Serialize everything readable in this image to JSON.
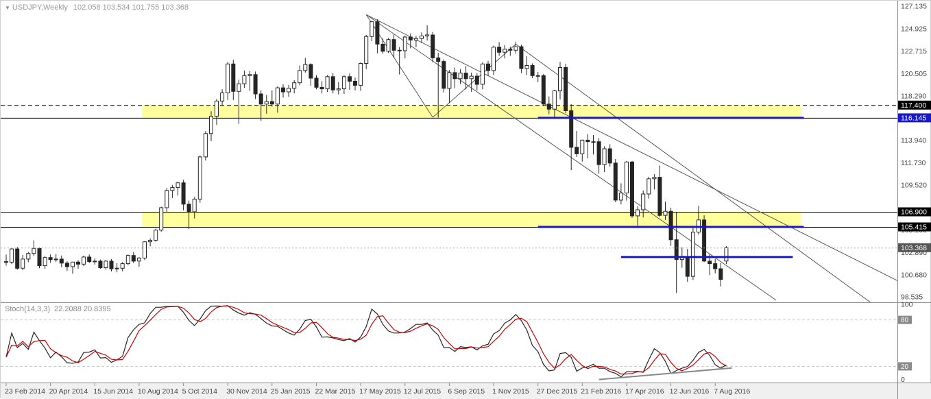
{
  "header": {
    "symbol_period": "USDJPY,Weekly",
    "ohlc": "102.058 103.534 101.755 103.368",
    "dropdown_glyph": "▼"
  },
  "stoch_panel": {
    "label_name": "Stoch(14,3,3)",
    "label_values": "22.2088 20.8395"
  },
  "colors": {
    "band_yellow": "#FFFF9E",
    "blue_line": "#1818C8",
    "line_black": "#000000",
    "trendline_grey": "#555555",
    "stoch_trend_grey": "#888888",
    "candle_up": "#FFFFFF",
    "candle_down": "#252525",
    "candle_stroke": "#252525",
    "stoch_main": "#222222",
    "stoch_signal": "#CC0000",
    "axis_text": "#444444",
    "separator": "#8a8a8a",
    "date_strip_bg": "#f0f0f0",
    "level_line": "#c8c8c8",
    "level_box_bg": "#8a8a8a",
    "current_price_bg": "#555555",
    "black_box_bg": "#000000"
  },
  "chart_data": {
    "type": "candlestick",
    "title": "USDJPY Weekly with Stochastic(14,3,3)",
    "main": {
      "symbol": "USDJPY",
      "timeframe": "Weekly",
      "ohlc_display": {
        "open": "102.058",
        "high": "103.534",
        "low": "101.755",
        "close": "103.368"
      },
      "current_price": 103.368,
      "ylim": [
        98.535,
        127.135
      ],
      "start_date": "23 Feb 2014",
      "price_axis": {
        "ticks": [
          "127.135",
          "124.925",
          "122.715",
          "120.505",
          "118.290",
          "113.940",
          "111.730",
          "109.520",
          "105.100",
          "102.890",
          "100.680",
          "98.535"
        ],
        "boxed": [
          {
            "price": 117.4,
            "text": "117.400",
            "bg": "#000000"
          },
          {
            "price": 116.145,
            "text": "116.145",
            "bg": "#1818C8"
          },
          {
            "price": 106.9,
            "text": "106.900",
            "bg": "#000000"
          },
          {
            "price": 105.415,
            "text": "105.415",
            "bg": "#000000"
          },
          {
            "price": 103.368,
            "text": "103.368",
            "bg": "#555555"
          }
        ]
      },
      "date_labels": [
        {
          "index": 0,
          "text": "23 Feb 2014"
        },
        {
          "index": 8,
          "text": "20 Apr 2014"
        },
        {
          "index": 16,
          "text": "15 Jun 2014"
        },
        {
          "index": 24,
          "text": "10 Aug 2014"
        },
        {
          "index": 32,
          "text": "5 Oct 2014"
        },
        {
          "index": 40,
          "text": "30 Nov 2014"
        },
        {
          "index": 48,
          "text": "25 Jan 2015"
        },
        {
          "index": 56,
          "text": "22 Mar 2015"
        },
        {
          "index": 64,
          "text": "17 May 2015"
        },
        {
          "index": 72,
          "text": "12 Jul 2015"
        },
        {
          "index": 80,
          "text": "6 Sep 2015"
        },
        {
          "index": 88,
          "text": "1 Nov 2015"
        },
        {
          "index": 96,
          "text": "27 Dec 2015"
        },
        {
          "index": 104,
          "text": "21 Feb 2016"
        },
        {
          "index": 112,
          "text": "17 Apr 2016"
        },
        {
          "index": 120,
          "text": "12 Jun 2016"
        },
        {
          "index": 128,
          "text": "7 Aug 2016"
        }
      ],
      "candles": [
        [
          102.0,
          102.7,
          101.6,
          101.95
        ],
        [
          101.95,
          103.35,
          101.75,
          103.25
        ],
        [
          103.25,
          103.45,
          101.2,
          101.35
        ],
        [
          101.35,
          102.65,
          101.15,
          102.25
        ],
        [
          102.25,
          102.95,
          101.95,
          102.8
        ],
        [
          102.8,
          104.1,
          102.55,
          103.3
        ],
        [
          103.3,
          103.4,
          101.35,
          101.6
        ],
        [
          101.6,
          102.55,
          101.3,
          102.4
        ],
        [
          102.4,
          102.7,
          101.9,
          102.2
        ],
        [
          102.2,
          102.75,
          101.95,
          102.25
        ],
        [
          102.25,
          102.6,
          101.45,
          101.85
        ],
        [
          101.85,
          102.05,
          101.1,
          101.5
        ],
        [
          101.5,
          101.98,
          100.8,
          101.95
        ],
        [
          101.95,
          102.15,
          101.3,
          101.75
        ],
        [
          101.75,
          102.6,
          101.55,
          102.45
        ],
        [
          102.45,
          102.7,
          101.85,
          102.0
        ],
        [
          102.0,
          102.3,
          101.7,
          102.05
        ],
        [
          102.05,
          102.2,
          101.3,
          101.4
        ],
        [
          101.4,
          102.15,
          101.2,
          102.05
        ],
        [
          102.05,
          102.25,
          101.05,
          101.3
        ],
        [
          101.3,
          101.85,
          100.95,
          101.35
        ],
        [
          101.35,
          101.95,
          101.05,
          101.8
        ],
        [
          101.8,
          102.7,
          101.65,
          102.6
        ],
        [
          102.6,
          102.95,
          101.85,
          102.05
        ],
        [
          102.05,
          102.45,
          101.5,
          102.35
        ],
        [
          102.35,
          104.0,
          102.15,
          103.95
        ],
        [
          103.95,
          104.3,
          103.5,
          104.1
        ],
        [
          104.1,
          105.25,
          103.95,
          105.1
        ],
        [
          105.1,
          107.4,
          104.95,
          107.3
        ],
        [
          107.3,
          109.25,
          106.85,
          109.0
        ],
        [
          109.0,
          109.55,
          108.25,
          109.3
        ],
        [
          109.3,
          109.85,
          108.5,
          109.75
        ],
        [
          109.75,
          110.05,
          107.05,
          107.65
        ],
        [
          107.65,
          108.0,
          105.2,
          106.9
        ],
        [
          106.9,
          108.35,
          106.25,
          108.15
        ],
        [
          108.15,
          112.45,
          107.8,
          112.3
        ],
        [
          112.3,
          114.85,
          111.95,
          114.6
        ],
        [
          114.6,
          116.8,
          113.85,
          116.3
        ],
        [
          116.3,
          118.0,
          115.45,
          117.8
        ],
        [
          117.8,
          118.95,
          117.35,
          118.6
        ],
        [
          118.6,
          121.65,
          117.9,
          121.45
        ],
        [
          121.45,
          121.85,
          117.9,
          118.75
        ],
        [
          118.75,
          119.9,
          115.56,
          119.5
        ],
        [
          119.5,
          120.8,
          119.1,
          120.3
        ],
        [
          120.3,
          120.75,
          118.8,
          120.4
        ],
        [
          120.4,
          120.7,
          118.0,
          118.5
        ],
        [
          118.5,
          118.85,
          115.85,
          117.5
        ],
        [
          117.5,
          118.4,
          116.55,
          117.75
        ],
        [
          117.75,
          118.85,
          117.25,
          117.5
        ],
        [
          117.5,
          119.25,
          116.65,
          119.1
        ],
        [
          119.1,
          119.45,
          118.15,
          118.7
        ],
        [
          118.7,
          119.4,
          118.2,
          119.05
        ],
        [
          119.05,
          119.85,
          118.55,
          119.6
        ],
        [
          119.6,
          121.3,
          119.35,
          120.8
        ],
        [
          120.8,
          122.05,
          120.6,
          121.4
        ],
        [
          121.4,
          121.5,
          119.3,
          120.05
        ],
        [
          120.05,
          120.35,
          118.95,
          119.15
        ],
        [
          119.15,
          119.75,
          118.55,
          119.0
        ],
        [
          119.0,
          120.35,
          118.7,
          120.2
        ],
        [
          120.2,
          120.55,
          118.55,
          118.9
        ],
        [
          118.9,
          119.65,
          118.45,
          119.0
        ],
        [
          119.0,
          120.35,
          118.5,
          120.2
        ],
        [
          120.2,
          120.5,
          118.9,
          119.75
        ],
        [
          119.75,
          120.1,
          118.85,
          119.35
        ],
        [
          119.35,
          121.6,
          118.8,
          121.5
        ],
        [
          121.5,
          124.3,
          120.95,
          124.15
        ],
        [
          124.15,
          125.7,
          123.7,
          125.6
        ],
        [
          125.6,
          125.86,
          122.5,
          123.4
        ],
        [
          123.4,
          123.95,
          122.45,
          122.7
        ],
        [
          122.7,
          124.0,
          122.55,
          123.85
        ],
        [
          123.85,
          124.35,
          122.1,
          122.8
        ],
        [
          122.8,
          123.1,
          120.41,
          122.75
        ],
        [
          122.75,
          124.25,
          122.0,
          124.1
        ],
        [
          124.1,
          124.45,
          123.0,
          123.8
        ],
        [
          123.8,
          124.2,
          123.1,
          123.95
        ],
        [
          123.95,
          124.55,
          123.5,
          124.2
        ],
        [
          124.2,
          125.25,
          123.75,
          124.3
        ],
        [
          124.3,
          124.6,
          121.6,
          122.05
        ],
        [
          122.05,
          122.55,
          116.15,
          121.7
        ],
        [
          121.7,
          121.9,
          118.65,
          119.05
        ],
        [
          119.05,
          120.85,
          117.6,
          120.6
        ],
        [
          120.6,
          121.1,
          119.05,
          120.0
        ],
        [
          120.0,
          120.95,
          119.45,
          120.55
        ],
        [
          120.55,
          121.25,
          118.95,
          120.0
        ],
        [
          120.0,
          120.6,
          118.7,
          120.25
        ],
        [
          120.25,
          120.55,
          118.85,
          119.45
        ],
        [
          119.45,
          121.6,
          118.95,
          121.45
        ],
        [
          121.45,
          121.75,
          120.25,
          120.8
        ],
        [
          120.8,
          123.25,
          120.35,
          123.1
        ],
        [
          123.1,
          123.6,
          122.25,
          122.6
        ],
        [
          122.6,
          123.3,
          122.0,
          122.9
        ],
        [
          122.9,
          123.15,
          122.25,
          122.8
        ],
        [
          122.8,
          123.65,
          122.45,
          123.15
        ],
        [
          123.15,
          123.35,
          120.55,
          121.0
        ],
        [
          121.0,
          122.2,
          120.35,
          121.3
        ],
        [
          121.3,
          121.5,
          120.05,
          120.3
        ],
        [
          120.3,
          120.65,
          119.65,
          120.3
        ],
        [
          120.3,
          120.45,
          117.3,
          117.5
        ],
        [
          117.5,
          118.25,
          116.5,
          117.0
        ],
        [
          117.0,
          118.9,
          116.05,
          118.8
        ],
        [
          118.8,
          121.65,
          117.95,
          121.1
        ],
        [
          121.1,
          121.45,
          116.6,
          116.85
        ],
        [
          116.85,
          117.5,
          110.99,
          113.25
        ],
        [
          113.25,
          114.85,
          112.3,
          112.6
        ],
        [
          112.6,
          114.0,
          111.85,
          113.95
        ],
        [
          113.95,
          114.55,
          112.15,
          113.8
        ],
        [
          113.8,
          114.45,
          112.55,
          113.8
        ],
        [
          113.8,
          114.15,
          110.65,
          111.55
        ],
        [
          111.55,
          113.35,
          110.8,
          113.1
        ],
        [
          113.1,
          113.55,
          111.35,
          111.7
        ],
        [
          111.7,
          112.1,
          107.85,
          108.05
        ],
        [
          108.05,
          109.7,
          107.63,
          108.75
        ],
        [
          108.75,
          111.9,
          108.0,
          111.8
        ],
        [
          111.8,
          111.9,
          106.3,
          106.5
        ],
        [
          106.5,
          107.45,
          105.55,
          107.1
        ],
        [
          107.1,
          109.0,
          106.35,
          108.65
        ],
        [
          108.65,
          110.35,
          108.2,
          110.15
        ],
        [
          110.15,
          110.6,
          109.1,
          110.3
        ],
        [
          110.3,
          111.45,
          106.4,
          106.55
        ],
        [
          106.55,
          107.9,
          106.1,
          106.95
        ],
        [
          106.95,
          107.3,
          103.55,
          104.15
        ],
        [
          104.15,
          106.85,
          98.9,
          102.2
        ],
        [
          102.2,
          103.4,
          101.4,
          102.5
        ],
        [
          102.5,
          103.25,
          100.0,
          100.55
        ],
        [
          100.55,
          105.4,
          100.2,
          104.9
        ],
        [
          104.9,
          107.5,
          104.65,
          106.1
        ],
        [
          106.1,
          106.55,
          101.95,
          102.05
        ],
        [
          102.05,
          102.7,
          100.68,
          101.8
        ],
        [
          101.8,
          102.25,
          100.85,
          101.3
        ],
        [
          101.3,
          101.85,
          99.55,
          100.25
        ],
        [
          102.058,
          103.534,
          101.755,
          103.368
        ]
      ],
      "annotations": {
        "bands": [
          {
            "price_top": 117.4,
            "price_bottom": 116.145,
            "from_index": 25,
            "to_index": 144
          },
          {
            "price_top": 106.9,
            "price_bottom": 105.415,
            "from_index": 25,
            "to_index": 144
          }
        ],
        "hlines": [
          {
            "price": 117.4,
            "style": "dashed"
          },
          {
            "price": 116.145,
            "style": "solid"
          },
          {
            "price": 106.9,
            "style": "solid"
          },
          {
            "price": 105.415,
            "style": "solid"
          }
        ],
        "blue_lines": [
          {
            "price": 116.145,
            "from_index": 96,
            "to_index": 144
          },
          {
            "price": 105.415,
            "from_index": 96,
            "to_index": 144
          },
          {
            "price": 102.45,
            "from_index": 111,
            "to_index": 142
          }
        ],
        "trendlines": [
          {
            "from_index": 65,
            "from_price": 126.3,
            "to_index": 77,
            "to_price": 116.2
          },
          {
            "from_index": 77,
            "from_price": 116.2,
            "to_index": 92,
            "to_price": 123.4
          },
          {
            "from_index": 92,
            "from_price": 123.4,
            "to_index": 156,
            "to_price": 98.0
          },
          {
            "from_index": 65,
            "from_price": 126.3,
            "to_index": 139,
            "to_price": 98.2
          },
          {
            "from_index": 65,
            "from_price": 126.3,
            "to_index": 161,
            "to_price": 100.1
          }
        ]
      }
    },
    "stochastic": {
      "name": "Stoch(14,3,3)",
      "params": [
        14,
        3,
        3
      ],
      "main_value": 22.2088,
      "signal_value": 20.8395,
      "levels": [
        80,
        20
      ],
      "axis": [
        {
          "value": 100,
          "text": "100",
          "boxed": false
        },
        {
          "value": 80,
          "text": "80",
          "boxed": true
        },
        {
          "value": 20,
          "text": "20",
          "boxed": true
        },
        {
          "value": 0,
          "text": "0",
          "boxed": false
        }
      ],
      "trendline": {
        "from_index": 107,
        "from_value": 3,
        "to_index": 131,
        "to_value": 18
      }
    }
  }
}
